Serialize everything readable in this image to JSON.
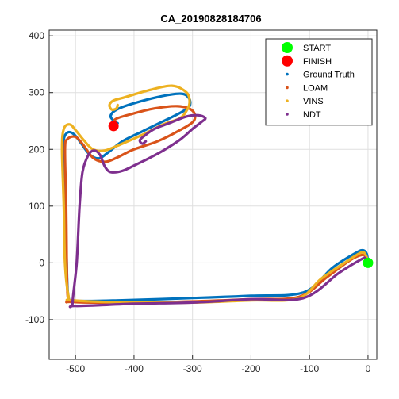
{
  "chart_data": {
    "type": "line",
    "title": "CA_20190828184706",
    "xlabel": "",
    "ylabel": "",
    "xlim": [
      -545,
      15
    ],
    "ylim": [
      -170,
      410
    ],
    "grid": true,
    "legend_position": "top-right",
    "xticks": [
      -500,
      -400,
      -300,
      -200,
      -100,
      0
    ],
    "yticks": [
      -100,
      0,
      100,
      200,
      300,
      400
    ],
    "markers": [
      {
        "name": "START",
        "x": 0,
        "y": 0,
        "color": "#00ff00"
      },
      {
        "name": "FINISH",
        "x": -435,
        "y": 241,
        "color": "#ff0000"
      }
    ],
    "series": [
      {
        "name": "Ground Truth",
        "color": "#0072bd",
        "points": [
          [
            0,
            0
          ],
          [
            -2,
            15
          ],
          [
            -8,
            22
          ],
          [
            -20,
            18
          ],
          [
            -60,
            -8
          ],
          [
            -110,
            -52
          ],
          [
            -200,
            -58
          ],
          [
            -300,
            -62
          ],
          [
            -420,
            -66
          ],
          [
            -500,
            -67
          ],
          [
            -512,
            -60
          ],
          [
            -515,
            0
          ],
          [
            -517,
            100
          ],
          [
            -520,
            190
          ],
          [
            -520,
            218
          ],
          [
            -513,
            230
          ],
          [
            -502,
            226
          ],
          [
            -490,
            210
          ],
          [
            -475,
            190
          ],
          [
            -460,
            184
          ],
          [
            -445,
            194
          ],
          [
            -420,
            214
          ],
          [
            -385,
            232
          ],
          [
            -345,
            252
          ],
          [
            -318,
            266
          ],
          [
            -305,
            276
          ],
          [
            -306,
            290
          ],
          [
            -320,
            298
          ],
          [
            -360,
            292
          ],
          [
            -410,
            278
          ],
          [
            -433,
            268
          ],
          [
            -440,
            258
          ],
          [
            -434,
            250
          ],
          [
            -428,
            246
          ]
        ]
      },
      {
        "name": "LOAM",
        "color": "#d95319",
        "points": [
          [
            0,
            0
          ],
          [
            -3,
            10
          ],
          [
            -10,
            14
          ],
          [
            -30,
            5
          ],
          [
            -70,
            -25
          ],
          [
            -118,
            -60
          ],
          [
            -200,
            -64
          ],
          [
            -300,
            -68
          ],
          [
            -400,
            -70
          ],
          [
            -505,
            -69
          ],
          [
            -513,
            -62
          ],
          [
            -515,
            0
          ],
          [
            -516,
            100
          ],
          [
            -518,
            200
          ],
          [
            -514,
            218
          ],
          [
            -500,
            222
          ],
          [
            -487,
            208
          ],
          [
            -470,
            185
          ],
          [
            -450,
            178
          ],
          [
            -430,
            185
          ],
          [
            -400,
            200
          ],
          [
            -360,
            214
          ],
          [
            -325,
            232
          ],
          [
            -298,
            250
          ],
          [
            -300,
            268
          ],
          [
            -325,
            276
          ],
          [
            -365,
            272
          ],
          [
            -405,
            262
          ],
          [
            -430,
            254
          ],
          [
            -436,
            246
          ],
          [
            -432,
            240
          ]
        ]
      },
      {
        "name": "VINS",
        "color": "#edb120",
        "points": [
          [
            0,
            0
          ],
          [
            -4,
            14
          ],
          [
            -12,
            18
          ],
          [
            -40,
            0
          ],
          [
            -80,
            -28
          ],
          [
            -120,
            -63
          ],
          [
            -200,
            -66
          ],
          [
            -300,
            -70
          ],
          [
            -400,
            -70
          ],
          [
            -505,
            -66
          ],
          [
            -512,
            -58
          ],
          [
            -518,
            0
          ],
          [
            -520,
            100
          ],
          [
            -523,
            200
          ],
          [
            -520,
            236
          ],
          [
            -510,
            244
          ],
          [
            -500,
            234
          ],
          [
            -485,
            215
          ],
          [
            -470,
            200
          ],
          [
            -450,
            198
          ],
          [
            -420,
            210
          ],
          [
            -385,
            226
          ],
          [
            -350,
            244
          ],
          [
            -323,
            254
          ],
          [
            -312,
            265
          ],
          [
            -305,
            282
          ],
          [
            -310,
            300
          ],
          [
            -335,
            312
          ],
          [
            -375,
            304
          ],
          [
            -415,
            292
          ],
          [
            -435,
            286
          ],
          [
            -442,
            278
          ],
          [
            -438,
            270
          ],
          [
            -430,
            272
          ],
          [
            -428,
            278
          ]
        ]
      },
      {
        "name": "NDT",
        "color": "#7e2f8e",
        "points": [
          [
            0,
            0
          ],
          [
            -4,
            8
          ],
          [
            -12,
            6
          ],
          [
            -50,
            -18
          ],
          [
            -110,
            -62
          ],
          [
            -200,
            -64
          ],
          [
            -300,
            -70
          ],
          [
            -400,
            -72
          ],
          [
            -500,
            -76
          ],
          [
            -505,
            -70
          ],
          [
            -498,
            0
          ],
          [
            -493,
            100
          ],
          [
            -488,
            160
          ],
          [
            -478,
            190
          ],
          [
            -468,
            198
          ],
          [
            -458,
            190
          ],
          [
            -450,
            170
          ],
          [
            -440,
            160
          ],
          [
            -420,
            162
          ],
          [
            -395,
            174
          ],
          [
            -375,
            184
          ],
          [
            -350,
            198
          ],
          [
            -320,
            218
          ],
          [
            -300,
            236
          ],
          [
            -285,
            248
          ],
          [
            -278,
            255
          ],
          [
            -290,
            260
          ],
          [
            -310,
            258
          ],
          [
            -340,
            246
          ],
          [
            -365,
            236
          ],
          [
            -382,
            224
          ],
          [
            -390,
            216
          ],
          [
            -386,
            210
          ],
          [
            -380,
            214
          ]
        ]
      }
    ]
  }
}
